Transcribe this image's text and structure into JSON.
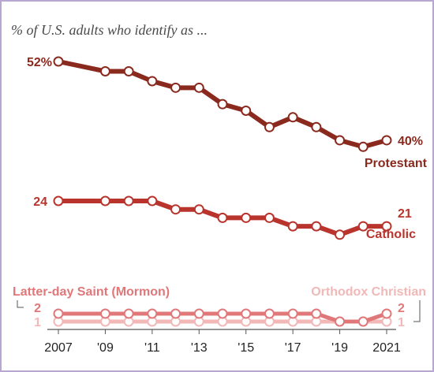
{
  "subtitle": "% of U.S. adults who identify as ...",
  "chart_data": {
    "type": "line",
    "x": [
      2007,
      2009,
      2010,
      2011,
      2012,
      2013,
      2014,
      2015,
      2016,
      2017,
      2018,
      2019,
      2020,
      2021
    ],
    "x_tick_labels": [
      "2007",
      "'09",
      "'11",
      "'13",
      "'15",
      "'17",
      "'19",
      "2021"
    ],
    "x_tick_values": [
      2007,
      2009,
      2011,
      2013,
      2015,
      2017,
      2019,
      2021
    ],
    "series": [
      {
        "name": "Protestant",
        "color": "#8a2a1f",
        "values": [
          52,
          50.5,
          50.5,
          49,
          48,
          48,
          45.5,
          44.5,
          42,
          43.5,
          42,
          40,
          39,
          40
        ],
        "start_label": "52%",
        "end_label": "40%"
      },
      {
        "name": "Catholic",
        "color": "#b8342c",
        "values": [
          24,
          24,
          24,
          24,
          23,
          23,
          22,
          22,
          22,
          21,
          21,
          20,
          21,
          21
        ],
        "start_label": "24",
        "end_label": "21"
      },
      {
        "name": "Latter-day Saint (Mormon)",
        "color": "#e0787a",
        "values": [
          2,
          2,
          2,
          2,
          2,
          2,
          2,
          2,
          2,
          2,
          2,
          1,
          1,
          2
        ],
        "start_label": "2",
        "end_label": "2"
      },
      {
        "name": "Orthodox Christian",
        "color": "#f2b8b8",
        "values": [
          1,
          1,
          1,
          1,
          1,
          1,
          1,
          1,
          1,
          1,
          1,
          1,
          1,
          1
        ],
        "start_label": "1",
        "end_label": "1"
      }
    ]
  }
}
